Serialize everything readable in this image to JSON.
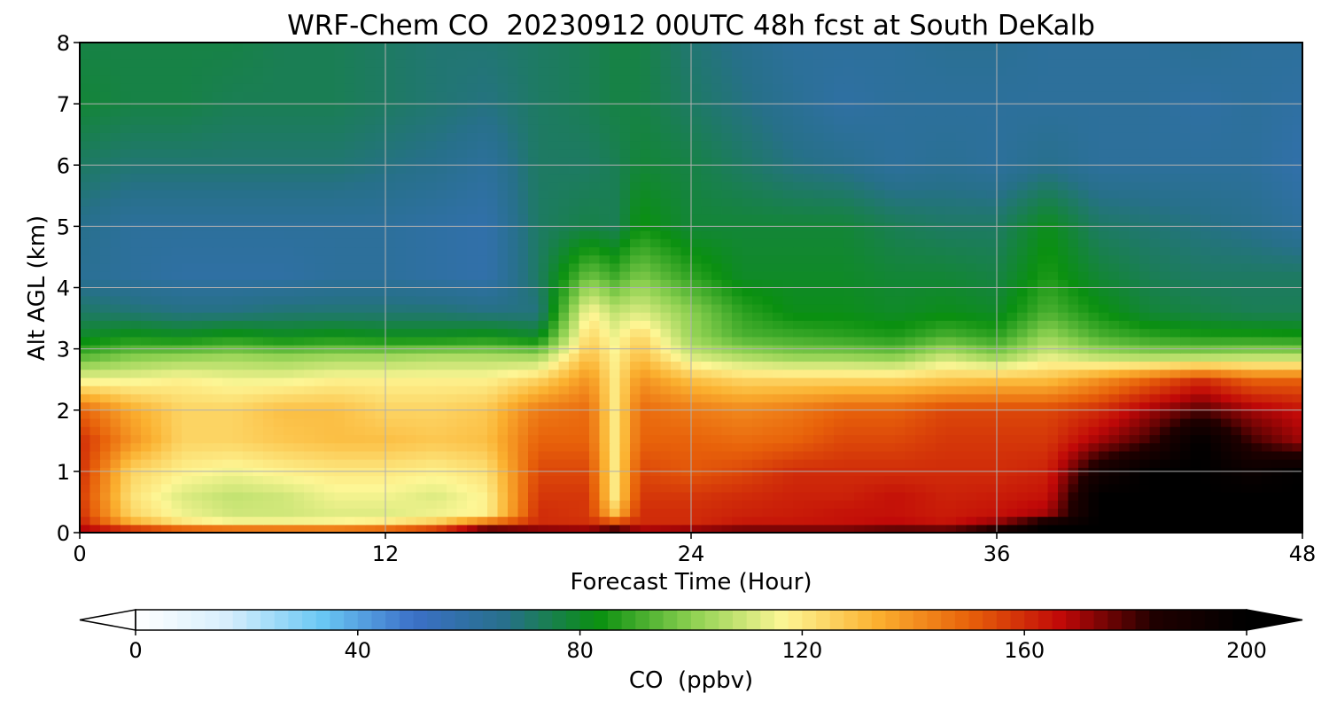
{
  "chart_data": {
    "type": "heatmap",
    "title": "WRF-Chem CO  20230912 00UTC 48h fcst at South DeKalb",
    "xlabel": "Forecast Time (Hour)",
    "ylabel": "Alt AGL (km)",
    "xlim": [
      0,
      48
    ],
    "ylim": [
      0,
      8
    ],
    "xticks": [
      0,
      12,
      24,
      36,
      48
    ],
    "yticks": [
      0,
      1,
      2,
      3,
      4,
      5,
      6,
      7,
      8
    ],
    "grid": true,
    "colorbar": {
      "label": "CO  (ppbv)",
      "range": [
        0,
        200
      ],
      "ticks": [
        0,
        40,
        80,
        120,
        160,
        200
      ],
      "extend": "both",
      "colors": [
        "#ffffff",
        "#d6eefc",
        "#6ac8f4",
        "#3b70c8",
        "#27708a",
        "#0a9010",
        "#8cd050",
        "#fdf695",
        "#fbb130",
        "#e8620a",
        "#c00808",
        "#200000",
        "#000000"
      ]
    },
    "x": [
      0,
      2,
      4,
      6,
      8,
      10,
      12,
      14,
      16,
      18,
      20,
      21,
      22,
      24,
      26,
      28,
      30,
      32,
      34,
      36,
      38,
      40,
      42,
      44,
      46,
      48
    ],
    "y": [
      0,
      0.1,
      0.3,
      0.6,
      1.0,
      1.5,
      2.0,
      2.5,
      2.9,
      3.2,
      3.6,
      4.2,
      5.0,
      6.0,
      7.0,
      8.0
    ],
    "series": [
      {
        "values": [
          [
            175,
            190,
            195,
            195,
            192,
            190,
            190,
            195,
            195,
            195,
            190,
            192,
            185,
            190,
            190,
            190,
            190,
            192,
            195,
            200,
            200,
            200,
            200,
            200,
            200,
            200
          ],
          [
            165,
            140,
            125,
            120,
            120,
            120,
            125,
            135,
            165,
            160,
            160,
            170,
            160,
            160,
            165,
            165,
            165,
            168,
            165,
            175,
            200,
            200,
            200,
            200,
            200,
            200
          ],
          [
            160,
            125,
            115,
            110,
            110,
            112,
            112,
            115,
            118,
            160,
            158,
            130,
            160,
            160,
            162,
            163,
            165,
            165,
            163,
            165,
            170,
            200,
            200,
            200,
            200,
            200
          ],
          [
            158,
            122,
            112,
            108,
            110,
            115,
            115,
            112,
            118,
            158,
            158,
            120,
            158,
            158,
            160,
            162,
            162,
            165,
            162,
            163,
            165,
            200,
            200,
            200,
            200,
            200
          ],
          [
            160,
            125,
            118,
            115,
            118,
            120,
            120,
            118,
            122,
            155,
            155,
            120,
            155,
            152,
            155,
            160,
            160,
            160,
            160,
            160,
            162,
            190,
            200,
            200,
            195,
            200
          ],
          [
            160,
            140,
            125,
            125,
            128,
            130,
            130,
            128,
            130,
            150,
            150,
            120,
            150,
            150,
            148,
            150,
            155,
            155,
            158,
            158,
            158,
            170,
            180,
            200,
            180,
            170
          ],
          [
            150,
            135,
            125,
            125,
            130,
            130,
            125,
            125,
            128,
            145,
            148,
            120,
            148,
            145,
            142,
            145,
            150,
            150,
            155,
            155,
            155,
            160,
            170,
            178,
            170,
            165
          ],
          [
            115,
            115,
            118,
            115,
            115,
            118,
            118,
            118,
            118,
            125,
            140,
            120,
            140,
            130,
            125,
            125,
            125,
            125,
            128,
            130,
            130,
            140,
            150,
            160,
            150,
            150
          ],
          [
            92,
            98,
            100,
            102,
            100,
            102,
            102,
            104,
            104,
            102,
            130,
            118,
            130,
            110,
            104,
            100,
            100,
            98,
            108,
            100,
            112,
            105,
            102,
            102,
            104,
            104
          ],
          [
            80,
            84,
            82,
            85,
            82,
            84,
            82,
            82,
            84,
            80,
            125,
            115,
            125,
            102,
            92,
            90,
            88,
            86,
            92,
            88,
            102,
            92,
            88,
            86,
            86,
            85
          ],
          [
            72,
            70,
            68,
            68,
            70,
            70,
            70,
            70,
            68,
            68,
            118,
            108,
            112,
            100,
            88,
            82,
            82,
            80,
            82,
            80,
            92,
            84,
            78,
            76,
            74,
            74
          ],
          [
            64,
            62,
            60,
            60,
            60,
            62,
            62,
            60,
            58,
            72,
            96,
            90,
            98,
            88,
            80,
            80,
            80,
            78,
            78,
            76,
            86,
            78,
            74,
            72,
            72,
            72
          ],
          [
            66,
            62,
            62,
            62,
            62,
            62,
            62,
            60,
            58,
            72,
            76,
            74,
            84,
            78,
            78,
            78,
            78,
            74,
            72,
            72,
            82,
            72,
            70,
            68,
            66,
            62
          ],
          [
            72,
            70,
            70,
            70,
            70,
            70,
            68,
            66,
            62,
            72,
            72,
            74,
            78,
            76,
            72,
            68,
            66,
            62,
            64,
            62,
            66,
            62,
            62,
            62,
            62,
            58
          ],
          [
            78,
            76,
            76,
            74,
            74,
            74,
            72,
            70,
            68,
            72,
            74,
            76,
            76,
            72,
            68,
            64,
            60,
            62,
            62,
            62,
            62,
            62,
            62,
            60,
            62,
            60
          ],
          [
            76,
            76,
            76,
            76,
            74,
            74,
            72,
            70,
            70,
            72,
            74,
            76,
            76,
            70,
            66,
            62,
            62,
            62,
            64,
            64,
            62,
            62,
            62,
            64,
            62,
            62
          ]
        ]
      }
    ]
  }
}
